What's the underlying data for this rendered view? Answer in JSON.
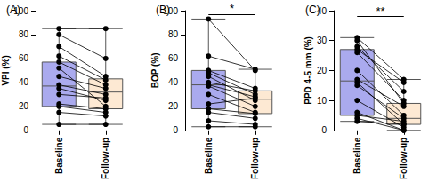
{
  "chart_data": [
    {
      "type": "boxplot",
      "title": "(A)",
      "y_label": "VPI (%)",
      "categories": [
        "Baseline",
        "Follow-up"
      ],
      "colors": [
        "#aaaaee",
        "#fde9d3"
      ],
      "ylim": [
        0,
        100
      ],
      "yticks": [
        0,
        20,
        40,
        60,
        80,
        100
      ],
      "box": [
        [
          5,
          20,
          37,
          57,
          85
        ],
        [
          5,
          18,
          32,
          43,
          85
        ]
      ],
      "points": [
        [
          85,
          80,
          70,
          62,
          57,
          52,
          45,
          38,
          35,
          30,
          22,
          20,
          15,
          5
        ],
        [
          85,
          60,
          45,
          42,
          38,
          20,
          35,
          30,
          25,
          27,
          18,
          15,
          12,
          5
        ]
      ]
    },
    {
      "type": "boxplot",
      "title": "(B)",
      "y_label": "BOP (%)",
      "categories": [
        "Baseline",
        "Follow-up"
      ],
      "colors": [
        "#aaaaee",
        "#fde9d3"
      ],
      "ylim": [
        0,
        100
      ],
      "yticks": [
        0,
        20,
        40,
        60,
        80,
        100
      ],
      "box": [
        [
          3,
          18,
          38,
          50,
          93
        ],
        [
          3,
          14,
          26,
          33,
          51
        ]
      ],
      "points": [
        [
          93,
          62,
          50,
          48,
          45,
          40,
          38,
          37,
          30,
          22,
          18,
          15,
          8,
          3
        ],
        [
          50,
          51,
          35,
          30,
          25,
          33,
          28,
          20,
          15,
          27,
          14,
          10,
          5,
          3
        ]
      ],
      "annotations": [
        {
          "text": "*",
          "y": 97
        }
      ]
    },
    {
      "type": "boxplot",
      "title": "(C)",
      "y_label": "PPD 4-5 mm (%)",
      "categories": [
        "Baseline",
        "Follow-up"
      ],
      "colors": [
        "#aaaaee",
        "#fde9d3"
      ],
      "ylim": [
        0,
        40
      ],
      "yticks": [
        0,
        10,
        20,
        30,
        40
      ],
      "box": [
        [
          3,
          5,
          16.5,
          27,
          31
        ],
        [
          0,
          2,
          4,
          9,
          17
        ]
      ],
      "points": [
        [
          31,
          30,
          28,
          27,
          26,
          20,
          17,
          16,
          15,
          10,
          6,
          5,
          4,
          3
        ],
        [
          17,
          9,
          13,
          16,
          10,
          5,
          8,
          2,
          4,
          1,
          0,
          3,
          0,
          2
        ]
      ],
      "annotations": [
        {
          "text": "**",
          "y": 38
        }
      ]
    }
  ]
}
